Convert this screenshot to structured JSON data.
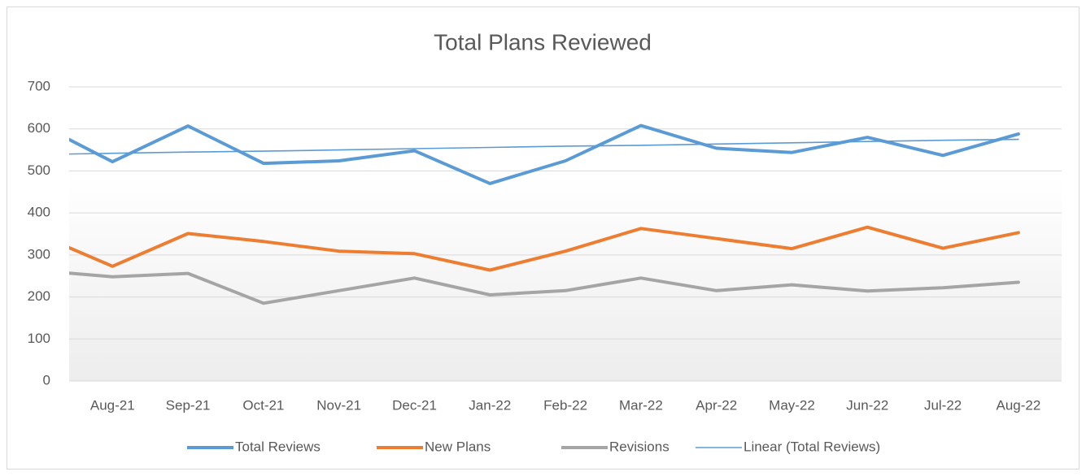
{
  "chart_data": {
    "type": "line",
    "title": "Total Plans Reviewed",
    "categories": [
      null,
      "Aug-21",
      "Sep-21",
      "Oct-21",
      "Nov-21",
      "Dec-21",
      "Jan-22",
      "Feb-22",
      "Mar-22",
      "Apr-22",
      "May-22",
      "Jun-22",
      "Jul-22",
      "Aug-22"
    ],
    "series": [
      {
        "name": "Total Reviews",
        "color": "#5b9bd5",
        "values": [
          614,
          522,
          607,
          518,
          524,
          548,
          470,
          524,
          608,
          554,
          544,
          580,
          537,
          588
        ]
      },
      {
        "name": "New Plans",
        "color": "#ed7d31",
        "values": [
          350,
          273,
          351,
          332,
          309,
          303,
          264,
          309,
          363,
          339,
          315,
          366,
          316,
          353
        ]
      },
      {
        "name": "Revisions",
        "color": "#a5a5a5",
        "values": [
          263,
          248,
          256,
          185,
          215,
          245,
          205,
          215,
          245,
          215,
          229,
          214,
          222,
          235
        ]
      },
      {
        "name": "Linear (Total Reviews)",
        "color": "#5b9bd5",
        "values": [
          539,
          542,
          545,
          547,
          550,
          553,
          556,
          559,
          561,
          564,
          567,
          570,
          573,
          575
        ]
      }
    ],
    "ylim": [
      0,
      700
    ],
    "yticks": [
      0,
      100,
      200,
      300,
      400,
      500,
      600,
      700
    ],
    "grid": true,
    "legend": "bottom"
  }
}
